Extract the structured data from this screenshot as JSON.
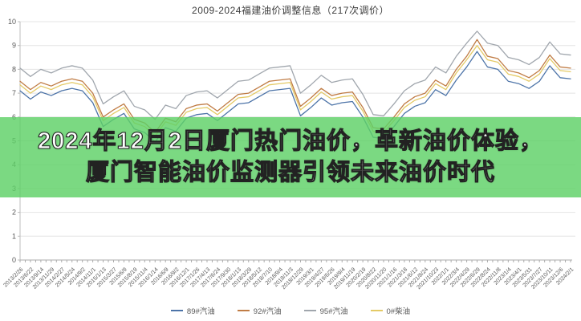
{
  "banner": {
    "line1": "2024年12月2日厦门热门油价，革新油价体验，",
    "line2": "厦门智能油价监测器引领未来油价时代",
    "bg_color": "#5ed166",
    "text_color": "#ffffff"
  },
  "chart_data": {
    "type": "line",
    "title": "2009-2024福建油价调整信息（217次调价）",
    "xlabel": "",
    "ylabel": "",
    "ylim": [
      0,
      10
    ],
    "ytick_step": 1,
    "grid": "horizontal",
    "legend_position": "bottom",
    "axis_color": "#bdbdbd",
    "grid_color": "#e4e4e4",
    "tick_label_color": "#595959",
    "x": [
      "2013/2/26",
      "2013/6/22",
      "2013/9/14",
      "2013/11/29",
      "2014/2/27",
      "2014/5/24",
      "2014/9/2",
      "2014/11/1",
      "2015/1/13",
      "2015/3/27",
      "2015/6/9",
      "2015/8/19",
      "2015/11/4",
      "2016/1/14",
      "2016/6/9",
      "2016/9/2",
      "2016/12/1",
      "2017/1/26",
      "2017/4/13",
      "2017/6/24",
      "2017/9/30",
      "2018/1/13",
      "2018/3/29",
      "2018/5/12",
      "2018/7/10",
      "2018/9/4",
      "2018/11/3",
      "2018/12/29",
      "2019/3/1",
      "2019/4/27",
      "2019/6/26",
      "2019/9/4",
      "2019/11/19",
      "2020/2/19",
      "2020/8/22",
      "2020/11/20",
      "2021/1/16",
      "2021/3/18",
      "2021/6/12",
      "2021/8/24",
      "2021/10/23",
      "2022/1/1",
      "2022/3/4",
      "2022/4/29",
      "2022/6/29",
      "2022/8/24",
      "2022/11/8",
      "2023/1/4",
      "2023/4/1",
      "2023/5/31",
      "2023/7/27",
      "2023/10/11",
      "2023/12/6",
      "2024/2/1"
    ],
    "series": [
      {
        "name": "89#汽油",
        "color": "#4d74a8",
        "values": [
          7.1,
          6.75,
          7.05,
          6.9,
          7.1,
          7.2,
          7.1,
          6.6,
          5.6,
          5.9,
          6.15,
          5.5,
          5.35,
          4.95,
          5.55,
          5.4,
          5.95,
          6.1,
          6.15,
          5.85,
          6.2,
          6.55,
          6.6,
          6.85,
          7.1,
          7.15,
          7.2,
          6.05,
          6.4,
          6.8,
          6.5,
          6.6,
          6.65,
          6.0,
          5.15,
          5.1,
          5.6,
          6.15,
          6.45,
          6.6,
          7.15,
          6.9,
          7.55,
          8.1,
          8.75,
          8.1,
          8.0,
          7.5,
          7.4,
          7.2,
          7.5,
          8.15,
          7.65,
          7.6
        ]
      },
      {
        "name": "92#汽油",
        "color": "#c07c45",
        "values": [
          7.5,
          7.15,
          7.45,
          7.3,
          7.5,
          7.6,
          7.5,
          7.0,
          6.0,
          6.3,
          6.55,
          5.9,
          5.75,
          5.35,
          5.95,
          5.8,
          6.35,
          6.5,
          6.55,
          6.25,
          6.6,
          6.95,
          7.0,
          7.25,
          7.5,
          7.55,
          7.6,
          6.45,
          6.8,
          7.2,
          6.9,
          7.0,
          7.05,
          6.4,
          5.55,
          5.5,
          6.0,
          6.55,
          6.85,
          7.0,
          7.55,
          7.3,
          8.0,
          8.55,
          9.25,
          8.55,
          8.45,
          7.95,
          7.85,
          7.65,
          7.95,
          8.6,
          8.1,
          8.05
        ]
      },
      {
        "name": "95#汽油",
        "color": "#a0a6ad",
        "values": [
          8.05,
          7.7,
          8.0,
          7.85,
          8.05,
          8.15,
          8.05,
          7.55,
          6.55,
          6.85,
          7.1,
          6.45,
          6.3,
          5.9,
          6.5,
          6.35,
          6.9,
          7.05,
          7.1,
          6.8,
          7.15,
          7.5,
          7.55,
          7.8,
          8.05,
          8.1,
          8.15,
          7.0,
          7.35,
          7.75,
          7.45,
          7.55,
          7.6,
          6.95,
          6.1,
          6.05,
          6.55,
          7.1,
          7.4,
          7.55,
          8.1,
          7.85,
          8.55,
          9.1,
          9.6,
          9.1,
          9.0,
          8.5,
          8.4,
          8.2,
          8.5,
          9.15,
          8.65,
          8.6
        ]
      },
      {
        "name": "0#柴油",
        "color": "#e4ca66",
        "values": [
          7.35,
          7.0,
          7.3,
          7.15,
          7.35,
          7.45,
          7.35,
          6.85,
          5.85,
          6.15,
          6.4,
          5.75,
          5.6,
          5.2,
          5.8,
          5.65,
          6.2,
          6.35,
          6.4,
          6.1,
          6.45,
          6.8,
          6.85,
          7.1,
          7.35,
          7.4,
          7.45,
          6.3,
          6.65,
          7.05,
          6.75,
          6.85,
          6.9,
          6.25,
          5.4,
          5.35,
          5.85,
          6.4,
          6.7,
          6.85,
          7.4,
          7.15,
          7.85,
          8.4,
          9.0,
          8.4,
          8.3,
          7.8,
          7.7,
          7.5,
          7.8,
          8.45,
          7.95,
          7.9
        ]
      }
    ]
  }
}
